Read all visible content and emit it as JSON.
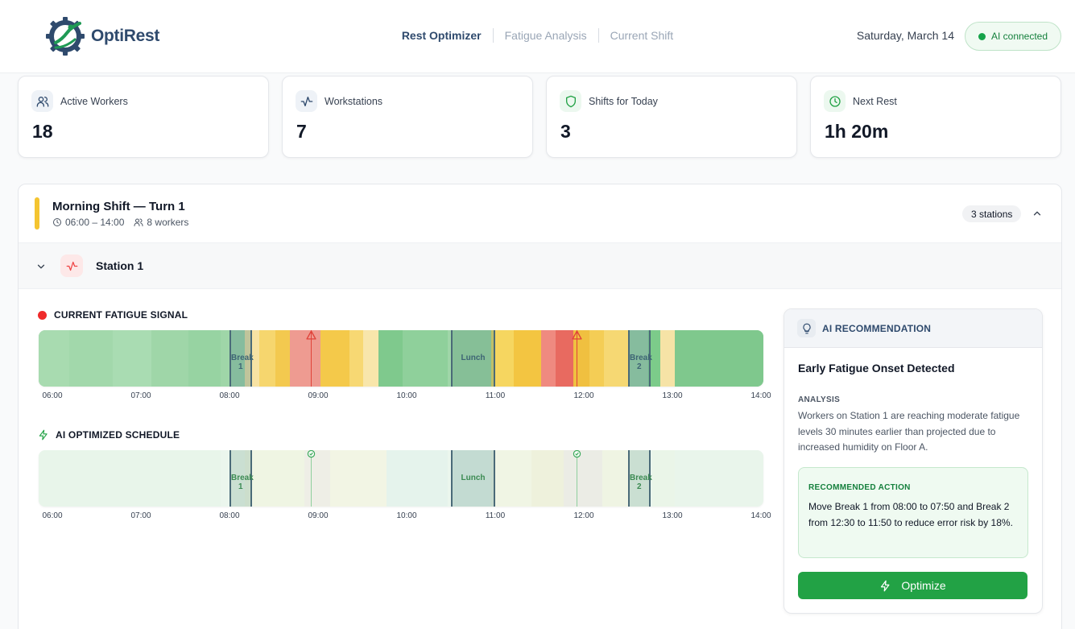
{
  "app": {
    "name": "OptiRest"
  },
  "nav": {
    "items": [
      {
        "label": "Rest Optimizer",
        "active": true
      },
      {
        "label": "Fatigue Analysis",
        "active": false
      },
      {
        "label": "Current Shift",
        "active": false
      }
    ]
  },
  "header": {
    "date": "Saturday, March 14",
    "ai_status": "AI connected"
  },
  "stats": [
    {
      "label": "Active Workers",
      "value": "18",
      "icon": "users-icon"
    },
    {
      "label": "Workstations",
      "value": "7",
      "icon": "activity-icon"
    },
    {
      "label": "Shifts for Today",
      "value": "3",
      "icon": "shield-icon"
    },
    {
      "label": "Next Rest",
      "value": "1h 20m",
      "icon": "clock-icon"
    }
  ],
  "shift": {
    "title": "Morning Shift — Turn 1",
    "time": "06:00 – 14:00",
    "workers": "8 workers",
    "stations_badge": "3 stations"
  },
  "station": {
    "name": "Station 1"
  },
  "fatigue": {
    "label": "CURRENT FATIGUE SIGNAL",
    "ticks": [
      "06:00",
      "07:00",
      "08:00",
      "09:00",
      "10:00",
      "11:00",
      "12:00",
      "13:00",
      "14:00"
    ],
    "breaks": [
      {
        "label": "Break 1",
        "start": "08:00",
        "end": "08:15"
      },
      {
        "label": "Lunch",
        "start": "10:30",
        "end": "11:00"
      },
      {
        "label": "Break 2",
        "start": "12:30",
        "end": "12:45"
      }
    ],
    "warnings": [
      "08:55",
      "11:55"
    ]
  },
  "optimized": {
    "label": "AI OPTIMIZED SCHEDULE",
    "ticks": [
      "06:00",
      "07:00",
      "08:00",
      "09:00",
      "10:00",
      "11:00",
      "12:00",
      "13:00",
      "14:00"
    ],
    "breaks": [
      {
        "label": "Break 1",
        "start": "08:00",
        "end": "08:15"
      },
      {
        "label": "Lunch",
        "start": "10:30",
        "end": "11:00"
      },
      {
        "label": "Break 2",
        "start": "12:30",
        "end": "12:45"
      }
    ],
    "checks": [
      "08:55",
      "11:55"
    ]
  },
  "recommendation": {
    "header": "AI RECOMMENDATION",
    "title": "Early Fatigue Onset Detected",
    "analysis_label": "ANALYSIS",
    "analysis": "Workers on Station 1 are reaching moderate fatigue levels 30 minutes earlier than projected due to increased humidity on Floor A.",
    "action_label": "RECOMMENDED ACTION",
    "action": "Move Break 1 from 08:00 to 07:50 and Break 2 from 12:30 to 11:50 to reduce error risk by 18%.",
    "button": "Optimize"
  },
  "colors": {
    "accent": "#2f4a6d",
    "green": "#22a245",
    "yellow": "#f4c430",
    "red": "#ef2b2b"
  }
}
